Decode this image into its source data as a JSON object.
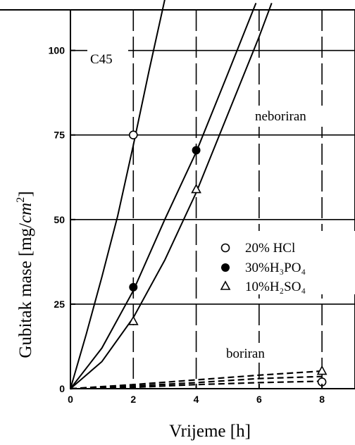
{
  "chart_data": {
    "type": "line",
    "xlabel": "Vrijeme [h]",
    "ylabel_text": "Gubitak mase [mg/",
    "ylabel_unit": "cm",
    "ylabel_exp": "2",
    "ylabel_close": "]",
    "xlim": [
      0,
      9.05
    ],
    "ylim": [
      0,
      112
    ],
    "xticks": [
      0,
      2,
      4,
      6,
      8
    ],
    "yticks": [
      0,
      25,
      50,
      75,
      100
    ],
    "grid": true,
    "annotations": {
      "material": "C45",
      "unborided": "neboriran",
      "borided": "boriran"
    },
    "legend": {
      "placement": "center-right",
      "entries": [
        {
          "marker": "open-circle",
          "label": "20% HCl"
        },
        {
          "marker": "filled-circle",
          "label": "30%H₃PO₄"
        },
        {
          "marker": "open-triangle",
          "label": "10%H₂SO₄"
        }
      ]
    },
    "series": [
      {
        "marker": "open-circle",
        "style": "solid",
        "curve": [
          [
            0,
            0
          ],
          [
            0.5,
            16
          ],
          [
            1,
            33
          ],
          [
            1.5,
            51
          ],
          [
            2,
            72
          ],
          [
            2.5,
            94
          ],
          [
            3,
            115
          ]
        ],
        "points": [
          [
            2,
            75
          ]
        ]
      },
      {
        "marker": "filled-circle",
        "style": "solid",
        "curve": [
          [
            0,
            0
          ],
          [
            1,
            12
          ],
          [
            2,
            29
          ],
          [
            3,
            50
          ],
          [
            4,
            70
          ],
          [
            5,
            93
          ],
          [
            5.9,
            114
          ]
        ],
        "points": [
          [
            2,
            30
          ],
          [
            4,
            70.5
          ]
        ]
      },
      {
        "marker": "open-triangle",
        "style": "solid",
        "curve": [
          [
            0,
            0
          ],
          [
            1,
            8
          ],
          [
            2,
            21
          ],
          [
            3,
            38
          ],
          [
            4,
            58
          ],
          [
            5,
            81
          ],
          [
            6,
            104
          ],
          [
            6.4,
            114
          ]
        ],
        "points": [
          [
            2,
            20
          ],
          [
            4,
            59
          ]
        ]
      },
      {
        "marker": "open-circle",
        "style": "dashed",
        "curve": [
          [
            0,
            0
          ],
          [
            2,
            0.4
          ],
          [
            4,
            1.2
          ],
          [
            6,
            1.8
          ],
          [
            8,
            2.2
          ]
        ],
        "points": [
          [
            8,
            2
          ]
        ]
      },
      {
        "marker": "filled-circle",
        "style": "dashed",
        "curve": [
          [
            0,
            0
          ],
          [
            2,
            0.8
          ],
          [
            4,
            1.8
          ],
          [
            6,
            3.0
          ],
          [
            8,
            3.6
          ]
        ],
        "points": []
      },
      {
        "marker": "open-triangle",
        "style": "dashed",
        "curve": [
          [
            0,
            0
          ],
          [
            2,
            1.2
          ],
          [
            4,
            2.6
          ],
          [
            6,
            4.0
          ],
          [
            8,
            5.2
          ]
        ],
        "points": [
          [
            8,
            5.3
          ]
        ]
      }
    ]
  }
}
